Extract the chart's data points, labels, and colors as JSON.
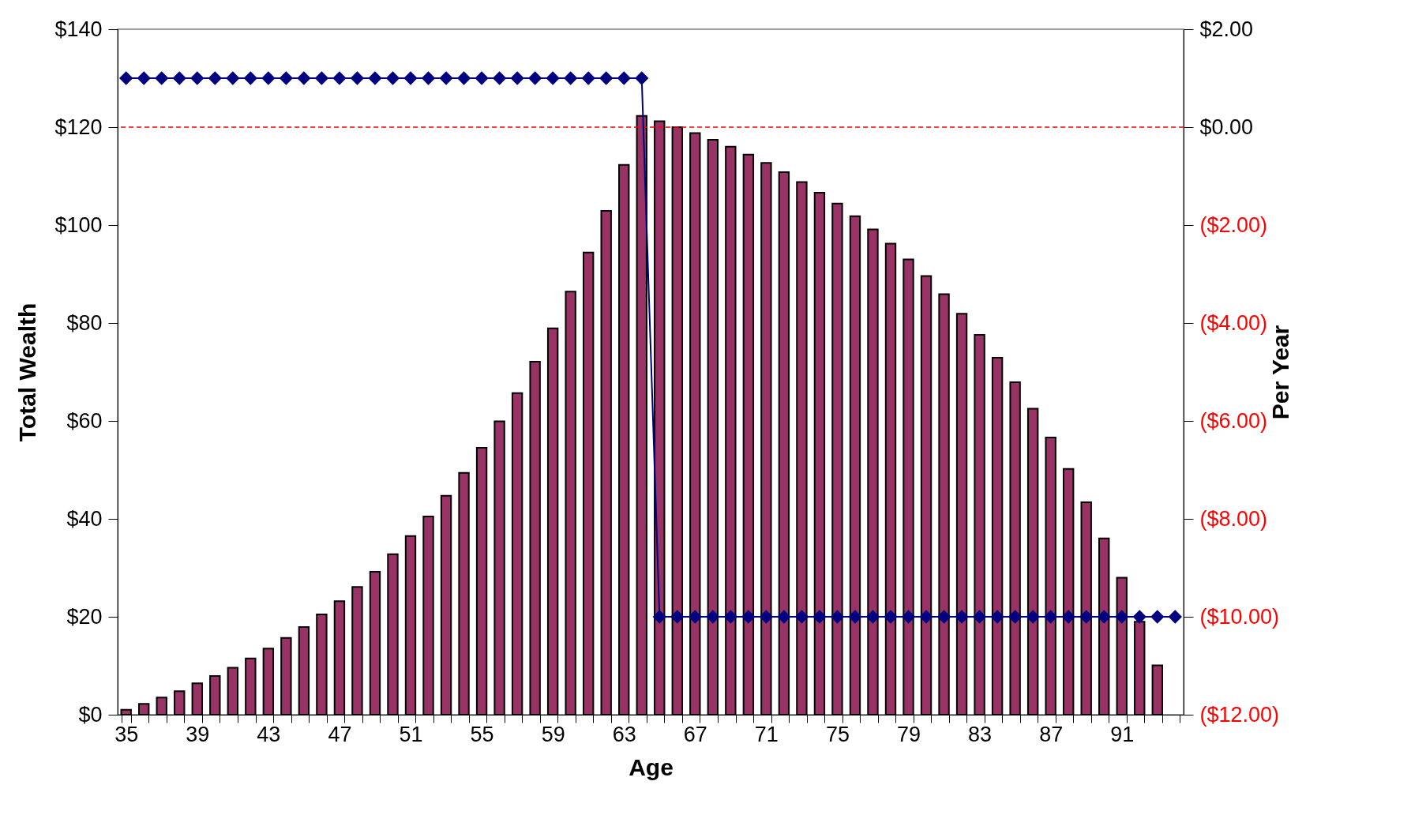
{
  "chart_data": {
    "type": "bar",
    "xlabel": "Age",
    "ylabel": "Total Wealth",
    "y2label": "Per Year",
    "categories": [
      "35",
      null,
      null,
      null,
      "39",
      null,
      null,
      null,
      "43",
      null,
      null,
      null,
      "47",
      null,
      null,
      null,
      "51",
      null,
      null,
      null,
      "55",
      null,
      null,
      null,
      "59",
      null,
      null,
      null,
      "63",
      null,
      null,
      null,
      "67",
      null,
      null,
      null,
      "71",
      null,
      null,
      null,
      "75",
      null,
      null,
      null,
      "79",
      null,
      null,
      null,
      "83",
      null,
      null,
      null,
      "87",
      null,
      null,
      null,
      "91",
      null,
      null,
      null
    ],
    "series": [
      {
        "color": "#993366",
        "values": [
          1.0,
          2.2,
          3.5,
          4.8,
          6.4,
          7.9,
          9.6,
          11.5,
          13.5,
          15.7,
          17.9,
          20.5,
          23.2,
          26.1,
          29.2,
          32.8,
          36.5,
          40.5,
          44.7,
          49.4,
          54.5,
          59.9,
          65.7,
          72.1,
          78.9,
          86.4,
          94.4,
          102.9,
          112.3,
          122.3,
          121.2,
          120.0,
          118.8,
          117.4,
          116.0,
          114.4,
          112.7,
          110.8,
          108.8,
          106.6,
          104.4,
          101.8,
          99.1,
          96.2,
          93.0,
          89.6,
          85.9,
          81.9,
          77.6,
          72.9,
          67.9,
          62.5,
          56.6,
          50.2,
          43.4,
          36.0,
          28.0,
          19,
          10.1,
          null
        ]
      },
      {
        "type": "line",
        "axis": "y2",
        "color": "#000080",
        "values": [
          1,
          1,
          1,
          1,
          1,
          1,
          1,
          1,
          1,
          1,
          1,
          1,
          1,
          1,
          1,
          1,
          1,
          1,
          1,
          1,
          1,
          1,
          1,
          1,
          1,
          1,
          1,
          1,
          1,
          1,
          -10,
          -10,
          -10,
          -10,
          -10,
          -10,
          -10,
          -10,
          -10,
          -10,
          -10,
          -10,
          -10,
          -10,
          -10,
          -10,
          -10,
          -10,
          -10,
          -10,
          -10,
          -10,
          -10,
          -10,
          -10,
          -10,
          -10,
          -10,
          -10,
          -10
        ]
      }
    ],
    "marker": "diamond",
    "line_style": "solid",
    "grid": false,
    "ylim": [
      0,
      140
    ],
    "yticks": [
      {
        "value": 0,
        "label": "$0"
      },
      {
        "value": 20,
        "label": "$20"
      },
      {
        "value": 40,
        "label": "$40"
      },
      {
        "value": 60,
        "label": "$60"
      },
      {
        "value": 80,
        "label": "$80"
      },
      {
        "value": 100,
        "label": "$100"
      },
      {
        "value": 120,
        "label": "$120"
      },
      {
        "value": 140,
        "label": "$140"
      }
    ],
    "y2lim": [
      -12,
      2
    ],
    "y2ticks": [
      {
        "value": -12,
        "label": "($12.00)"
      },
      {
        "value": -10,
        "label": "($10.00)"
      },
      {
        "value": -8,
        "label": "($8.00)"
      },
      {
        "value": -6,
        "label": "($6.00)"
      },
      {
        "value": -4,
        "label": "($4.00)"
      },
      {
        "value": -2,
        "label": "($2.00)"
      },
      {
        "value": 0,
        "label": "$0.00"
      },
      {
        "value": 2,
        "label": "$2.00"
      }
    ],
    "ref_lines": [
      {
        "axis": "y2",
        "value": 0,
        "color": "#ff0000",
        "line_style": "dashed"
      }
    ]
  }
}
